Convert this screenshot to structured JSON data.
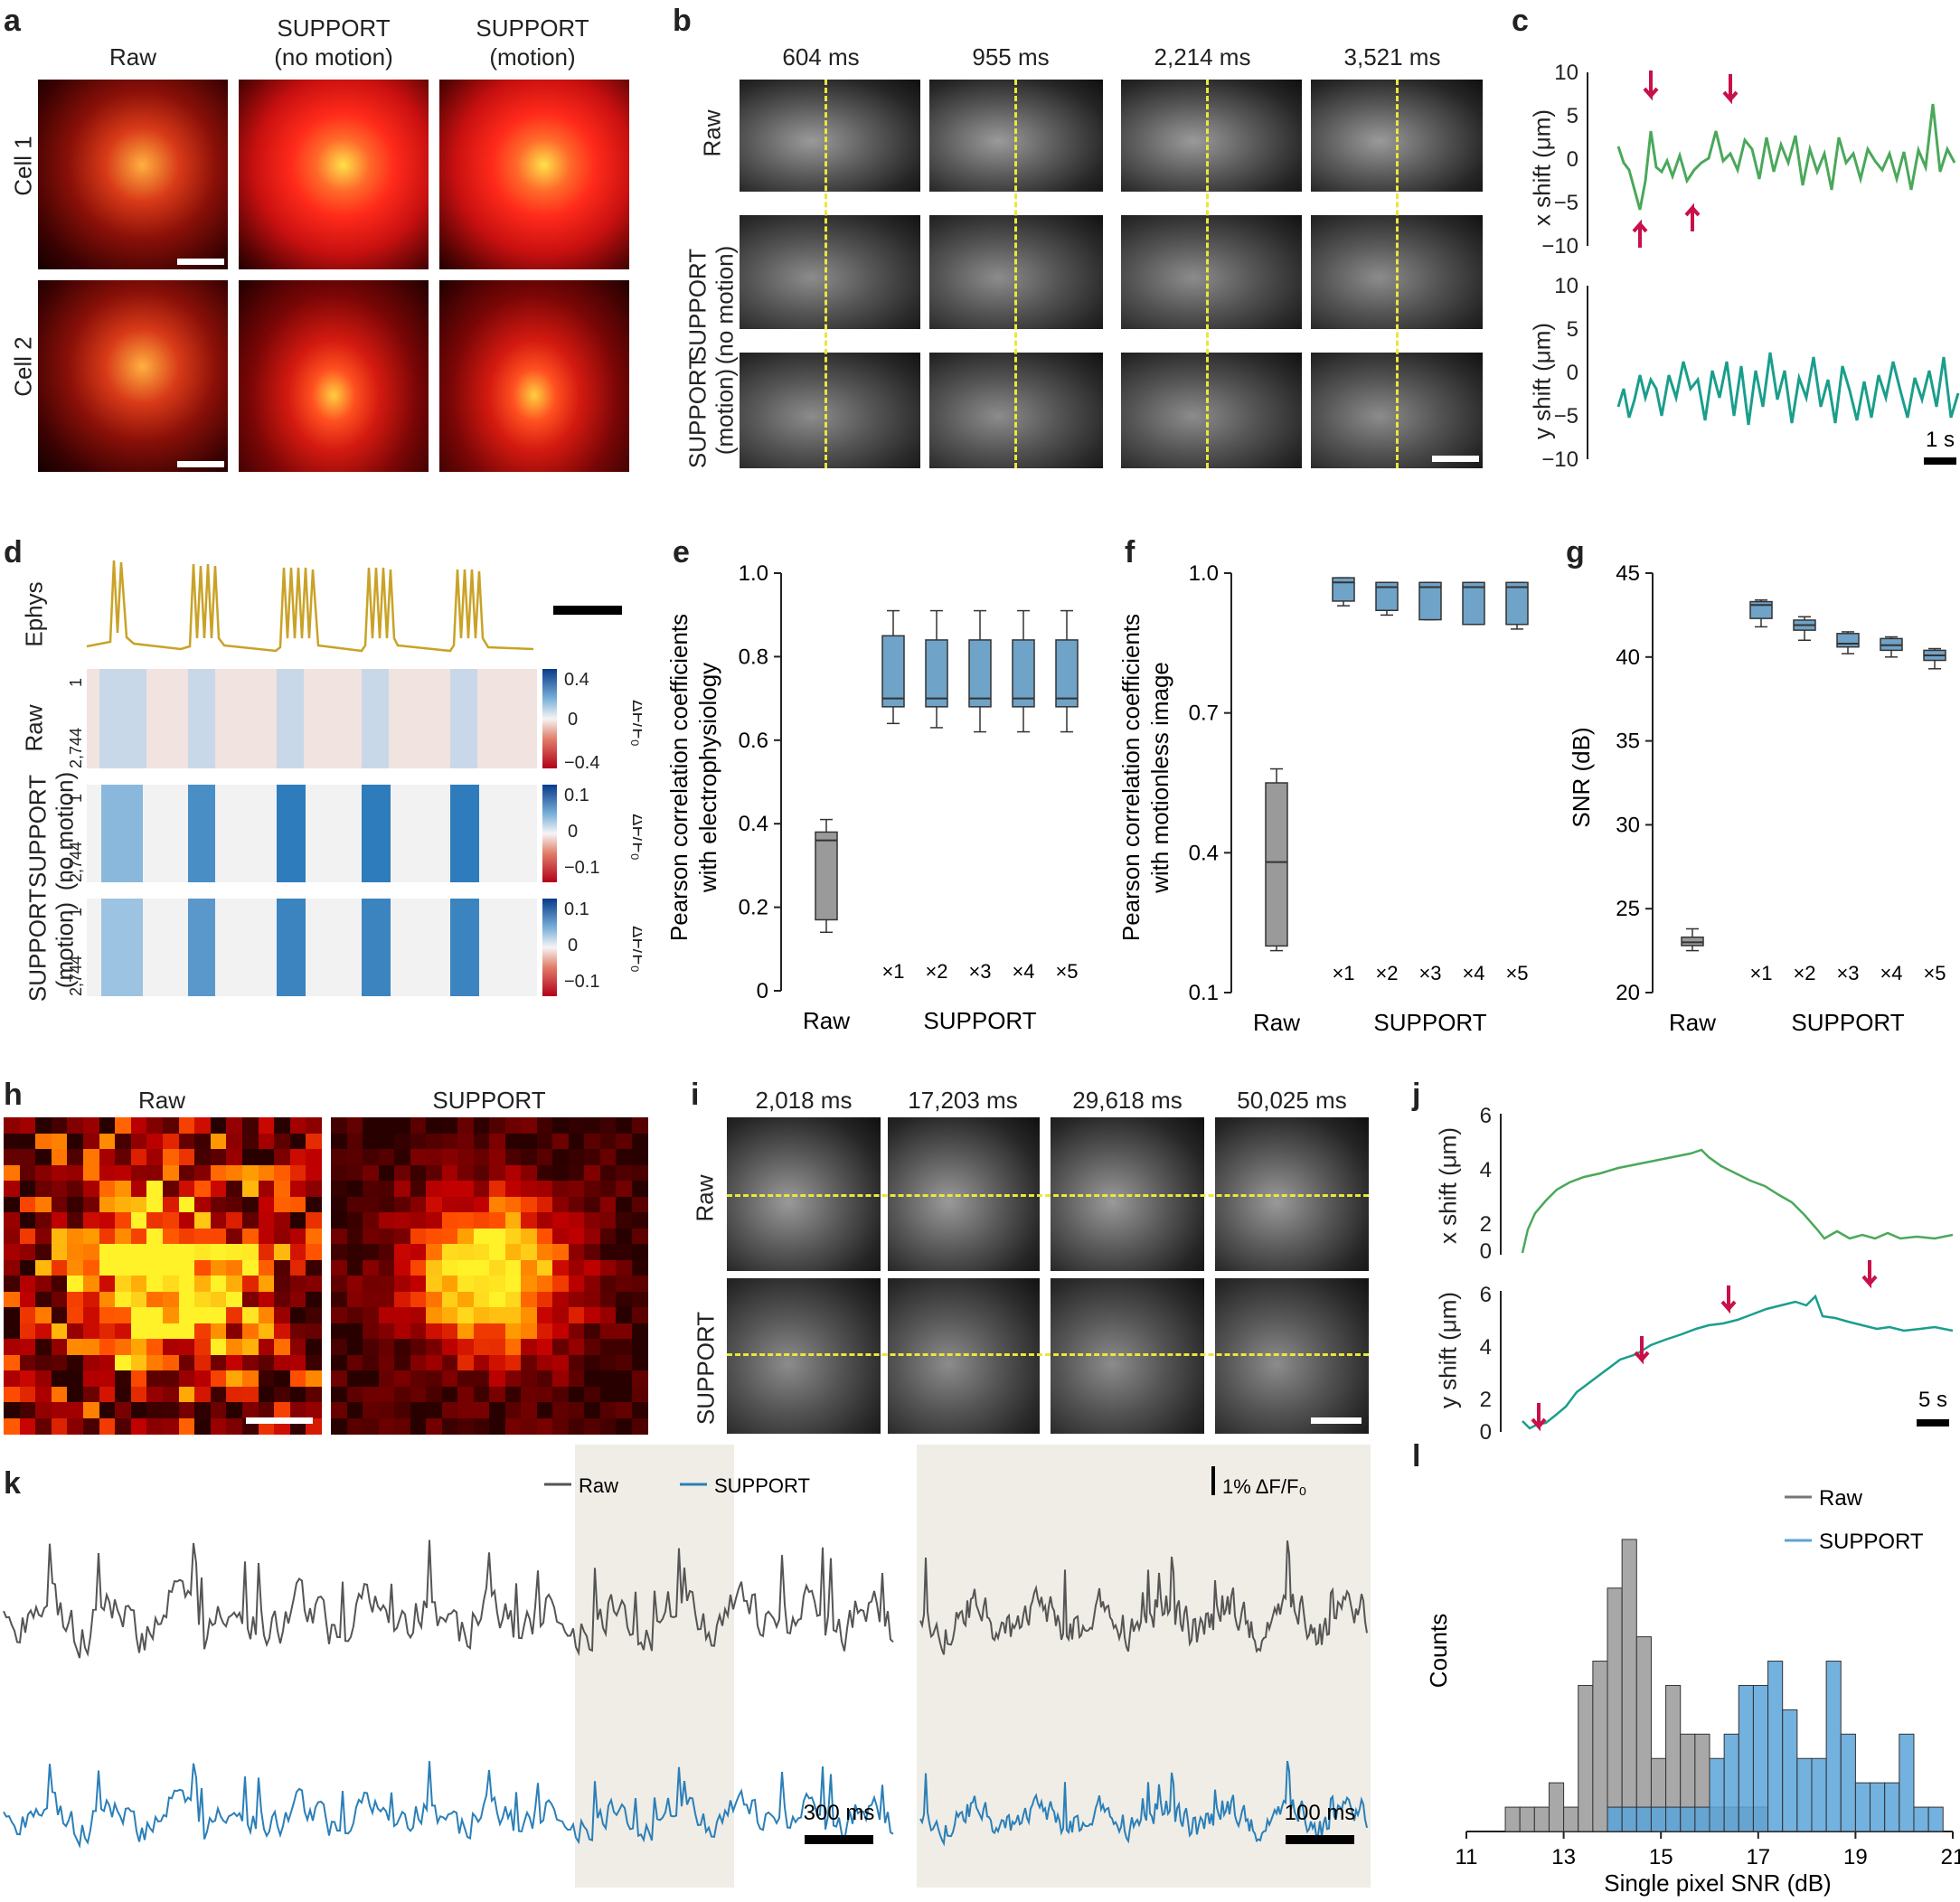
{
  "panels": {
    "a": {
      "label": "a",
      "col_headers": [
        "Raw",
        "SUPPORT\n(no motion)",
        "SUPPORT\n(motion)"
      ],
      "col1": "Raw",
      "col2a": "SUPPORT",
      "col2b": "(no motion)",
      "col3a": "SUPPORT",
      "col3b": "(motion)",
      "row1": "Cell 1",
      "row2": "Cell 2"
    },
    "b": {
      "label": "b",
      "times": [
        "604 ms",
        "955 ms",
        "2,214 ms",
        "3,521 ms"
      ],
      "row1": "Raw",
      "row2a": "SUPPORT",
      "row2b": "(no motion)",
      "row3a": "SUPPORT",
      "row3b": "(motion)"
    },
    "c": {
      "label": "c",
      "ylabel_x": "x shift (μm)",
      "ylabel_y": "y shift (μm)",
      "ticks": [
        "10",
        "5",
        "0",
        "−5",
        "−10"
      ],
      "scale": "1 s"
    },
    "d": {
      "label": "d",
      "ephys": "Ephys",
      "raw": "Raw",
      "sup_nm_a": "SUPPORT",
      "sup_nm_b": "(no motion)",
      "sup_m_a": "SUPPORT",
      "sup_m_b": "(motion)",
      "row_top": "1",
      "row_bot": "2,744",
      "cbar1": [
        "0.4",
        "0",
        "−0.4"
      ],
      "cbar2": [
        "0.1",
        "0",
        "−0.1"
      ],
      "cbar_label": "ΔF/F₀"
    },
    "e": {
      "label": "e",
      "ylabel1": "Pearson correlation coefficients",
      "ylabel2": "with electrophysiology",
      "yticks": [
        "1.0",
        "0.8",
        "0.6",
        "0.4",
        "0.2",
        "0"
      ],
      "xcat_raw": "Raw",
      "xcat_sup": "SUPPORT",
      "mult": [
        "×1",
        "×2",
        "×3",
        "×4",
        "×5"
      ]
    },
    "f": {
      "label": "f",
      "ylabel1": "Pearson correlation coefficients",
      "ylabel2": "with motionless image",
      "yticks": [
        "1.0",
        "0.7",
        "0.4",
        "0.1"
      ],
      "xcat_raw": "Raw",
      "xcat_sup": "SUPPORT",
      "mult": [
        "×1",
        "×2",
        "×3",
        "×4",
        "×5"
      ]
    },
    "g": {
      "label": "g",
      "ylabel": "SNR (dB)",
      "yticks": [
        "45",
        "40",
        "35",
        "30",
        "25",
        "20"
      ],
      "xcat_raw": "Raw",
      "xcat_sup": "SUPPORT",
      "mult": [
        "×1",
        "×2",
        "×3",
        "×4",
        "×5"
      ]
    },
    "h": {
      "label": "h",
      "col1": "Raw",
      "col2": "SUPPORT"
    },
    "i": {
      "label": "i",
      "times": [
        "2,018 ms",
        "17,203 ms",
        "29,618 ms",
        "50,025 ms"
      ],
      "row1": "Raw",
      "row2": "SUPPORT"
    },
    "j": {
      "label": "j",
      "ylabel_x": "x shift (μm)",
      "ylabel_y": "y shift (μm)",
      "ticks": [
        "6",
        "4",
        "2",
        "0"
      ],
      "scale": "5 s"
    },
    "k": {
      "label": "k",
      "legend_raw": "Raw",
      "legend_sup": "SUPPORT",
      "scale_y": "1% ΔF/F₀",
      "scale_x1": "300 ms",
      "scale_x2": "100 ms"
    },
    "l": {
      "label": "l",
      "legend_raw": "Raw",
      "legend_sup": "SUPPORT",
      "ylabel": "Counts",
      "xlabel": "Single pixel SNR (dB)",
      "xticks": [
        "11",
        "13",
        "15",
        "17",
        "19",
        "21"
      ]
    }
  },
  "colors": {
    "green": "#4aa85a",
    "teal": "#1a9e8c",
    "magenta": "#c8104a",
    "box_blue": "#6fa3c8",
    "box_gray": "#999999",
    "raw_trace": "#555555",
    "sup_trace": "#2b7fb8",
    "ephys": "#c9a227",
    "hist_blue": "#5ba3d9",
    "hist_gray": "#a8a8a8"
  },
  "chart_data": [
    {
      "type": "box",
      "id": "e",
      "categories": [
        "Raw",
        "×1",
        "×2",
        "×3",
        "×4",
        "×5"
      ],
      "boxes": [
        {
          "min": 0.14,
          "q1": 0.17,
          "median": 0.36,
          "q3": 0.38,
          "max": 0.41
        },
        {
          "min": 0.64,
          "q1": 0.68,
          "median": 0.7,
          "q3": 0.85,
          "max": 0.91
        },
        {
          "min": 0.63,
          "q1": 0.68,
          "median": 0.7,
          "q3": 0.84,
          "max": 0.91
        },
        {
          "min": 0.62,
          "q1": 0.68,
          "median": 0.7,
          "q3": 0.84,
          "max": 0.91
        },
        {
          "min": 0.62,
          "q1": 0.68,
          "median": 0.7,
          "q3": 0.84,
          "max": 0.91
        },
        {
          "min": 0.62,
          "q1": 0.68,
          "median": 0.7,
          "q3": 0.84,
          "max": 0.91
        }
      ],
      "ylim": [
        0,
        1.0
      ]
    },
    {
      "type": "box",
      "id": "f",
      "categories": [
        "Raw",
        "×1",
        "×2",
        "×3",
        "×4",
        "×5"
      ],
      "boxes": [
        {
          "min": 0.19,
          "q1": 0.2,
          "median": 0.38,
          "q3": 0.55,
          "max": 0.58
        },
        {
          "min": 0.93,
          "q1": 0.94,
          "median": 0.98,
          "q3": 0.99,
          "max": 0.99
        },
        {
          "min": 0.91,
          "q1": 0.92,
          "median": 0.97,
          "q3": 0.98,
          "max": 0.98
        },
        {
          "min": 0.9,
          "q1": 0.9,
          "median": 0.97,
          "q3": 0.98,
          "max": 0.98
        },
        {
          "min": 0.89,
          "q1": 0.89,
          "median": 0.97,
          "q3": 0.98,
          "max": 0.98
        },
        {
          "min": 0.88,
          "q1": 0.89,
          "median": 0.97,
          "q3": 0.98,
          "max": 0.98
        }
      ],
      "ylim": [
        0.1,
        1.0
      ]
    },
    {
      "type": "box",
      "id": "g",
      "categories": [
        "Raw",
        "×1",
        "×2",
        "×3",
        "×4",
        "×5"
      ],
      "boxes": [
        {
          "min": 22.5,
          "q1": 22.8,
          "median": 23.0,
          "q3": 23.3,
          "max": 23.8
        },
        {
          "min": 41.8,
          "q1": 42.3,
          "median": 43.1,
          "q3": 43.3,
          "max": 43.4
        },
        {
          "min": 41.0,
          "q1": 41.6,
          "median": 41.9,
          "q3": 42.2,
          "max": 42.4
        },
        {
          "min": 40.2,
          "q1": 40.6,
          "median": 40.8,
          "q3": 41.4,
          "max": 41.5
        },
        {
          "min": 40.0,
          "q1": 40.4,
          "median": 40.7,
          "q3": 41.1,
          "max": 41.2
        },
        {
          "min": 39.3,
          "q1": 39.8,
          "median": 40.1,
          "q3": 40.4,
          "max": 40.5
        }
      ],
      "ylim": [
        20,
        45
      ]
    },
    {
      "type": "bar",
      "id": "l",
      "bin_start": 11.8,
      "bin_width": 0.3,
      "series": [
        {
          "name": "Raw",
          "values": [
            1,
            1,
            1,
            2,
            1,
            6,
            7,
            10,
            12,
            8,
            3,
            6,
            4,
            4,
            1,
            1,
            1,
            1,
            0,
            0,
            0,
            0,
            0,
            0,
            0,
            0,
            0,
            0,
            0,
            0
          ]
        },
        {
          "name": "SUPPORT",
          "values": [
            0,
            0,
            0,
            0,
            0,
            0,
            0,
            1,
            1,
            1,
            1,
            1,
            1,
            1,
            3,
            4,
            6,
            6,
            7,
            5,
            3,
            3,
            7,
            4,
            2,
            2,
            2,
            4,
            1,
            1
          ]
        }
      ],
      "xlim": [
        11,
        21
      ],
      "xlabel": "Single pixel SNR (dB)",
      "ylabel": "Counts"
    }
  ]
}
